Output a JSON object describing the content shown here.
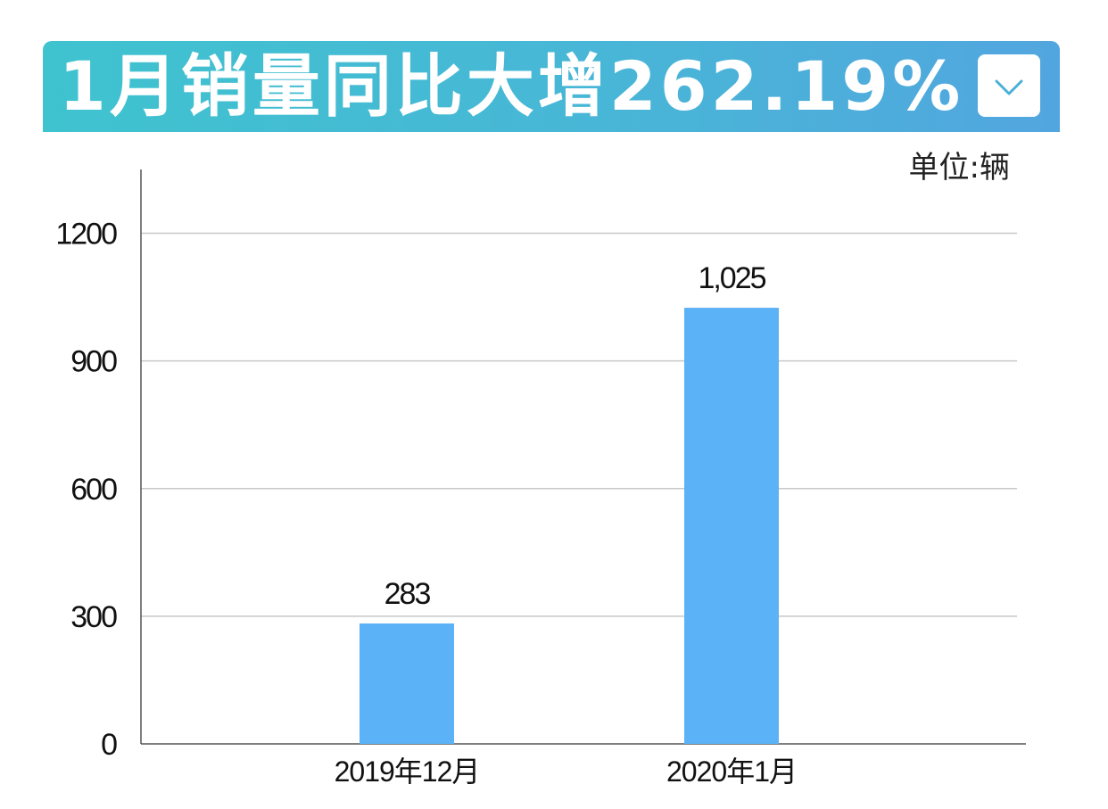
{
  "header": {
    "title": "1月销量同比大增262.19%",
    "dropdown_icon": "chevron-down-icon"
  },
  "unit_label": "单位:辆",
  "colors": {
    "banner_start": "#3fc3cf",
    "banner_end": "#52a6df",
    "bar": "#5cb2f6",
    "grid": "#c8c8c8",
    "axis": "#555555"
  },
  "chart_data": {
    "type": "bar",
    "categories": [
      "2019年12月",
      "2020年1月"
    ],
    "values": [
      283,
      1025
    ],
    "data_labels": [
      "283",
      "1,025"
    ],
    "yticks": [
      0,
      300,
      600,
      900,
      1200
    ],
    "ylim": [
      0,
      1350
    ],
    "grid": true,
    "title": "1月销量同比大增262.19%",
    "xlabel": "",
    "ylabel": ""
  }
}
